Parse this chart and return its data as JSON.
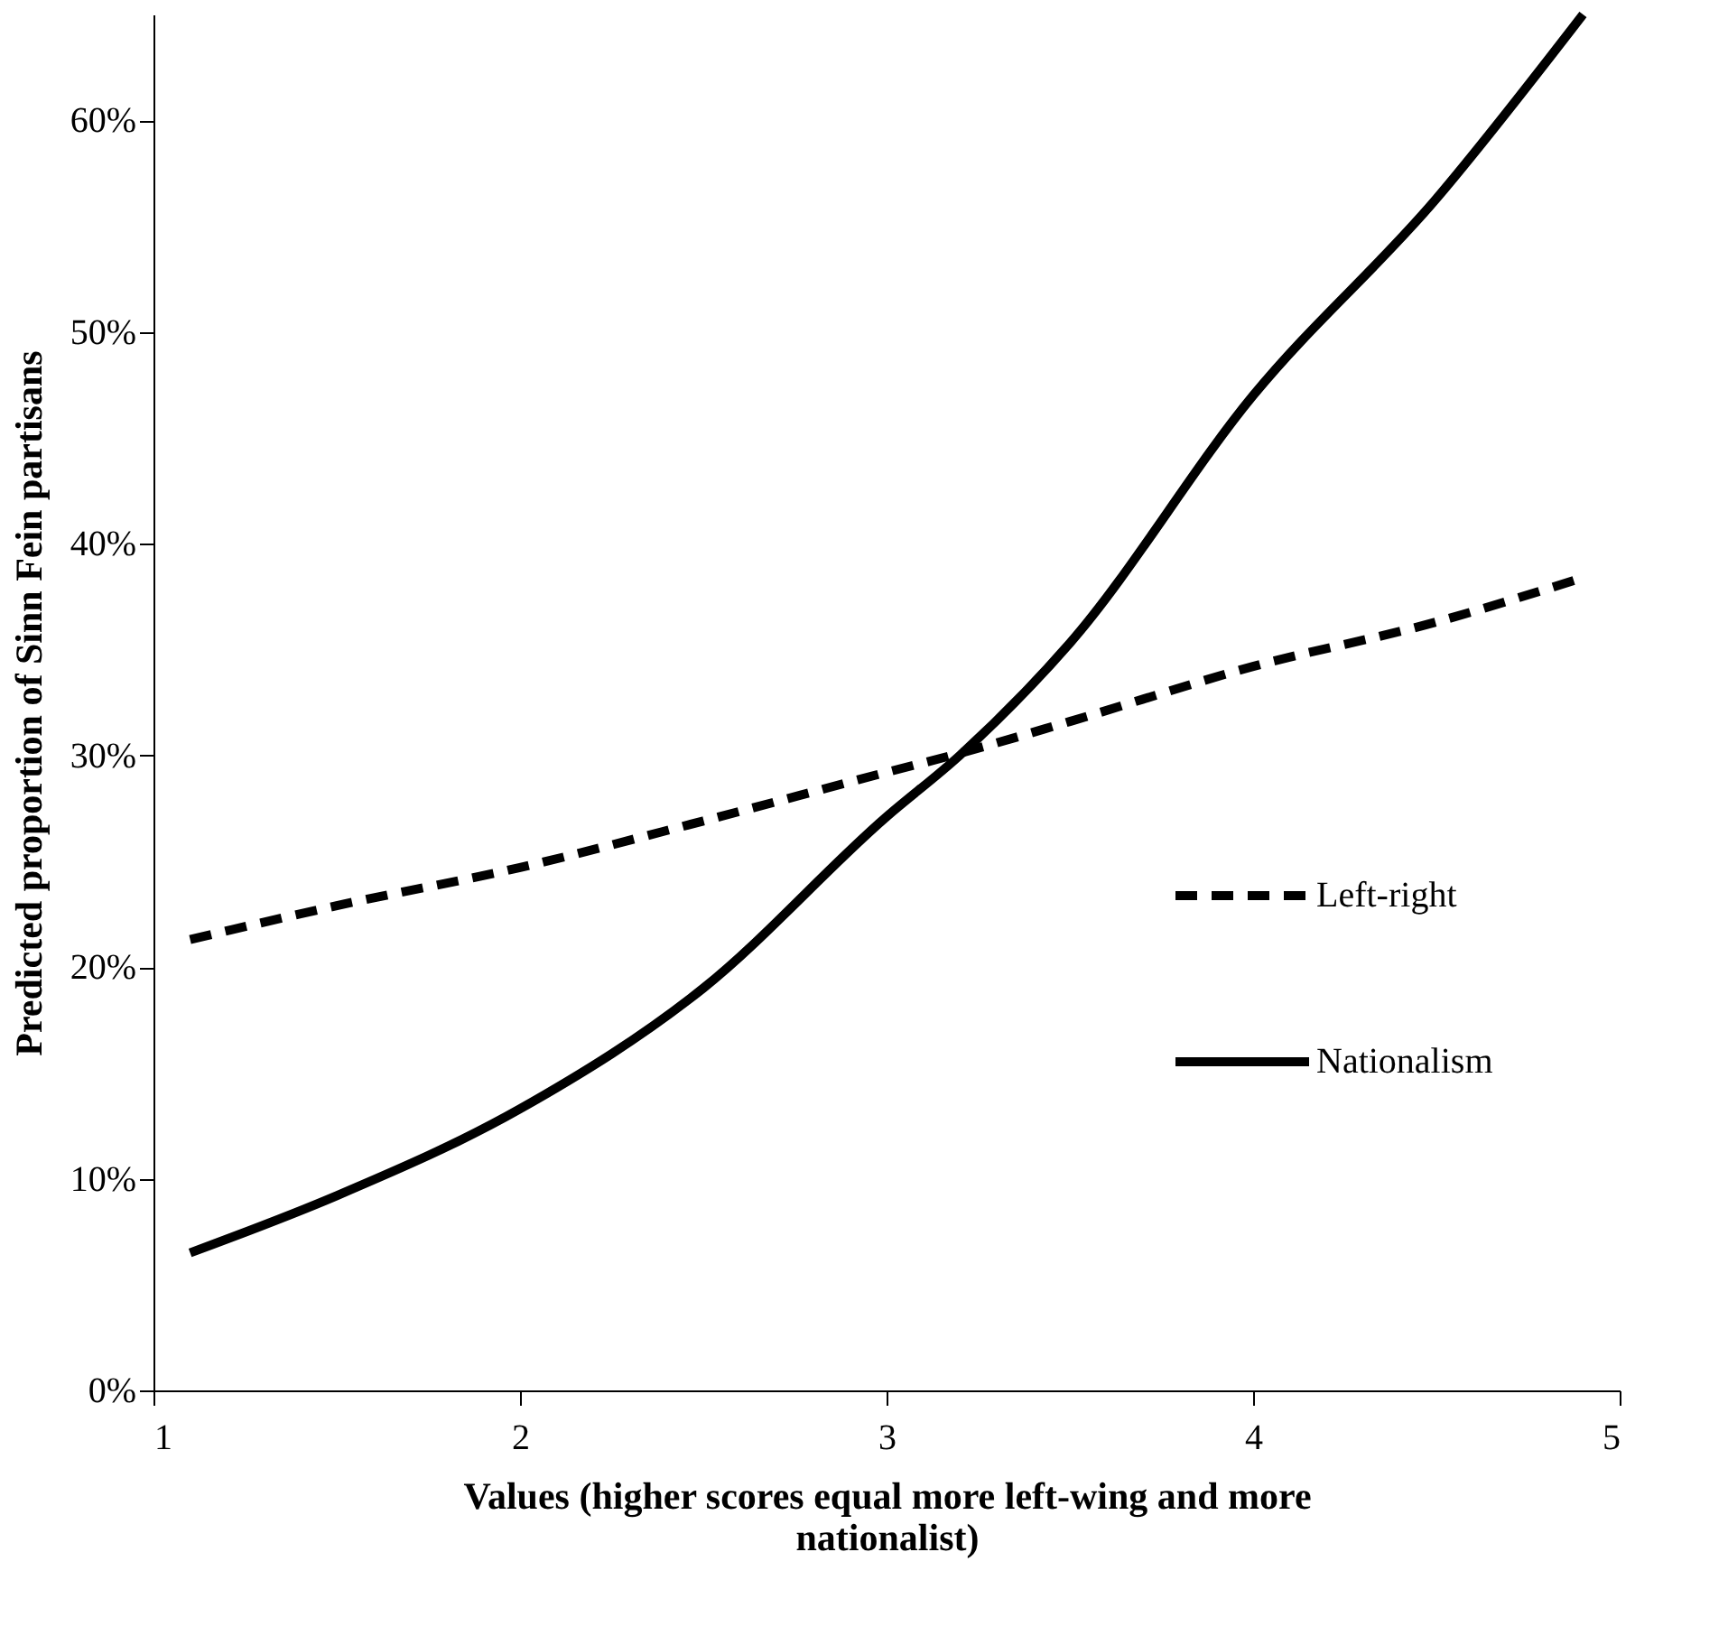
{
  "chart_data": {
    "type": "line",
    "xlabel": "Values (higher scores equal more left-wing and more nationalist)",
    "ylabel": "Predicted proportion of Sinn Fein partisans",
    "x": [
      1.1,
      1.5,
      2,
      2.5,
      3,
      3.2,
      3.5,
      4,
      4.5,
      4.9
    ],
    "series": [
      {
        "name": "Left-right",
        "color": "#000000",
        "line_style": "dashed",
        "values": [
          21.3,
          22.9,
          24.7,
          26.9,
          29.2,
          30.1,
          31.6,
          34.2,
          36.3,
          38.4
        ]
      },
      {
        "name": "Nationalism",
        "color": "#000000",
        "line_style": "solid",
        "values": [
          6.5,
          9.2,
          13.3,
          19.0,
          27.1,
          30.0,
          35.3,
          47.0,
          56.3,
          65.0
        ]
      }
    ],
    "xlim": [
      1,
      5
    ],
    "xticks": [
      1,
      2,
      3,
      4,
      5
    ],
    "ylim": [
      0,
      65
    ],
    "yticks": [
      {
        "value": 0,
        "label": "0%"
      },
      {
        "value": 10,
        "label": "10%"
      },
      {
        "value": 20,
        "label": "20%"
      },
      {
        "value": 30,
        "label": "30%"
      },
      {
        "value": 40,
        "label": "40%"
      },
      {
        "value": 50,
        "label": "50%"
      },
      {
        "value": 60,
        "label": "60%"
      }
    ],
    "grid": false,
    "legend": "right",
    "marker": "none"
  }
}
